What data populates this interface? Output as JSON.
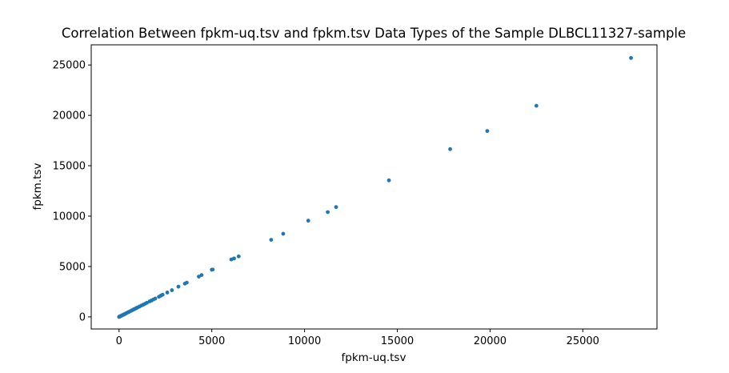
{
  "chart_data": {
    "type": "scatter",
    "title": "Correlation Between fpkm-uq.tsv and fpkm.tsv Data Types of the Sample DLBCL11327-sample",
    "xlabel": "fpkm-uq.tsv",
    "ylabel": "fpkm.tsv",
    "xlim": [
      -1500,
      29000
    ],
    "ylim": [
      -1200,
      27000
    ],
    "x_ticks": [
      0,
      5000,
      10000,
      15000,
      20000,
      25000
    ],
    "y_ticks": [
      0,
      5000,
      10000,
      15000,
      20000,
      25000
    ],
    "x_tick_labels": [
      "0",
      "5000",
      "10000",
      "15000",
      "20000",
      "25000"
    ],
    "y_tick_labels": [
      "0",
      "5000",
      "10000",
      "15000",
      "20000",
      "25000"
    ],
    "grid": false,
    "legend": "none",
    "marker_color": "#1f77b4",
    "points": [
      [
        27600,
        25700
      ],
      [
        22500,
        20950
      ],
      [
        19850,
        18450
      ],
      [
        17850,
        16650
      ],
      [
        14550,
        13550
      ],
      [
        11700,
        10900
      ],
      [
        11250,
        10400
      ],
      [
        10200,
        9550
      ],
      [
        8850,
        8250
      ],
      [
        8200,
        7650
      ],
      [
        6450,
        6000
      ],
      [
        6200,
        5800
      ],
      [
        6050,
        5700
      ],
      [
        5050,
        4700
      ],
      [
        5000,
        4680
      ],
      [
        4450,
        4150
      ],
      [
        4300,
        4000
      ],
      [
        3650,
        3400
      ],
      [
        3550,
        3300
      ],
      [
        3200,
        3000
      ],
      [
        2850,
        2650
      ],
      [
        2600,
        2420
      ],
      [
        2350,
        2200
      ],
      [
        2250,
        2100
      ],
      [
        2150,
        2000
      ],
      [
        1950,
        1820
      ],
      [
        1850,
        1720
      ],
      [
        1750,
        1630
      ],
      [
        1650,
        1540
      ],
      [
        1500,
        1400
      ],
      [
        1400,
        1300
      ],
      [
        1300,
        1210
      ],
      [
        1200,
        1120
      ],
      [
        1100,
        1030
      ],
      [
        1000,
        930
      ],
      [
        950,
        890
      ],
      [
        880,
        820
      ],
      [
        800,
        750
      ],
      [
        740,
        690
      ],
      [
        680,
        630
      ],
      [
        620,
        580
      ],
      [
        560,
        520
      ],
      [
        500,
        470
      ],
      [
        450,
        420
      ],
      [
        400,
        375
      ],
      [
        350,
        330
      ],
      [
        300,
        280
      ],
      [
        260,
        240
      ],
      [
        220,
        205
      ],
      [
        180,
        170
      ],
      [
        150,
        140
      ],
      [
        120,
        110
      ],
      [
        90,
        85
      ],
      [
        60,
        55
      ],
      [
        40,
        37
      ],
      [
        20,
        18
      ],
      [
        10,
        9
      ],
      [
        0,
        0
      ]
    ]
  }
}
